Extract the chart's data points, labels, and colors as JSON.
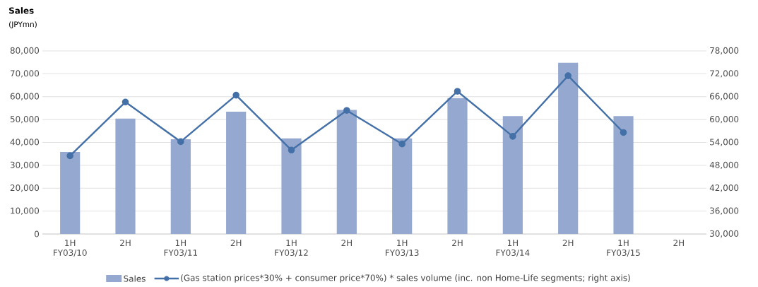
{
  "chart_data": {
    "type": "bar",
    "title": "Sales",
    "annotations": [
      "(JPYmn)"
    ],
    "categories": [
      "1H FY03/10",
      "2H",
      "1H FY03/11",
      "2H",
      "1H FY03/12",
      "2H",
      "1H FY03/13",
      "2H",
      "1H FY03/14",
      "2H",
      "1H FY03/15",
      "2H"
    ],
    "series": [
      {
        "name": "Sales",
        "color": "#95a9d0",
        "values": [
          35800,
          50400,
          41400,
          53400,
          41800,
          54200,
          41800,
          59400,
          51500,
          74800,
          51500,
          null
        ]
      },
      {
        "name": "(Gas station prices*30% + consumer price*70%) * sales volume (inc. non Home-Life segments; right axis)",
        "type": "line",
        "axis": "y2",
        "color": "#4470a8",
        "marker": "circle",
        "line_style": "solid",
        "values": [
          50500,
          64600,
          54200,
          66400,
          52000,
          62400,
          53600,
          67400,
          55600,
          71500,
          56600,
          null
        ]
      }
    ],
    "ylim": [
      0,
      80000
    ],
    "yticks": [
      {
        "value": 0,
        "label": "0"
      },
      {
        "value": 10000,
        "label": "10,000"
      },
      {
        "value": 20000,
        "label": "20,000"
      },
      {
        "value": 30000,
        "label": "30,000"
      },
      {
        "value": 40000,
        "label": "40,000"
      },
      {
        "value": 50000,
        "label": "50,000"
      },
      {
        "value": 60000,
        "label": "60,000"
      },
      {
        "value": 70000,
        "label": "70,000"
      },
      {
        "value": 80000,
        "label": "80,000"
      }
    ],
    "y2lim": [
      30000,
      78000
    ],
    "y2ticks": [
      {
        "value": 30000,
        "label": "30,000"
      },
      {
        "value": 36000,
        "label": "36,000"
      },
      {
        "value": 42000,
        "label": "42,000"
      },
      {
        "value": 48000,
        "label": "48,000"
      },
      {
        "value": 54000,
        "label": "54,000"
      },
      {
        "value": 60000,
        "label": "60,000"
      },
      {
        "value": 66000,
        "label": "66,000"
      },
      {
        "value": 72000,
        "label": "72,000"
      },
      {
        "value": 78000,
        "label": "78,000"
      }
    ],
    "grid": "y",
    "legend": "bottom"
  }
}
